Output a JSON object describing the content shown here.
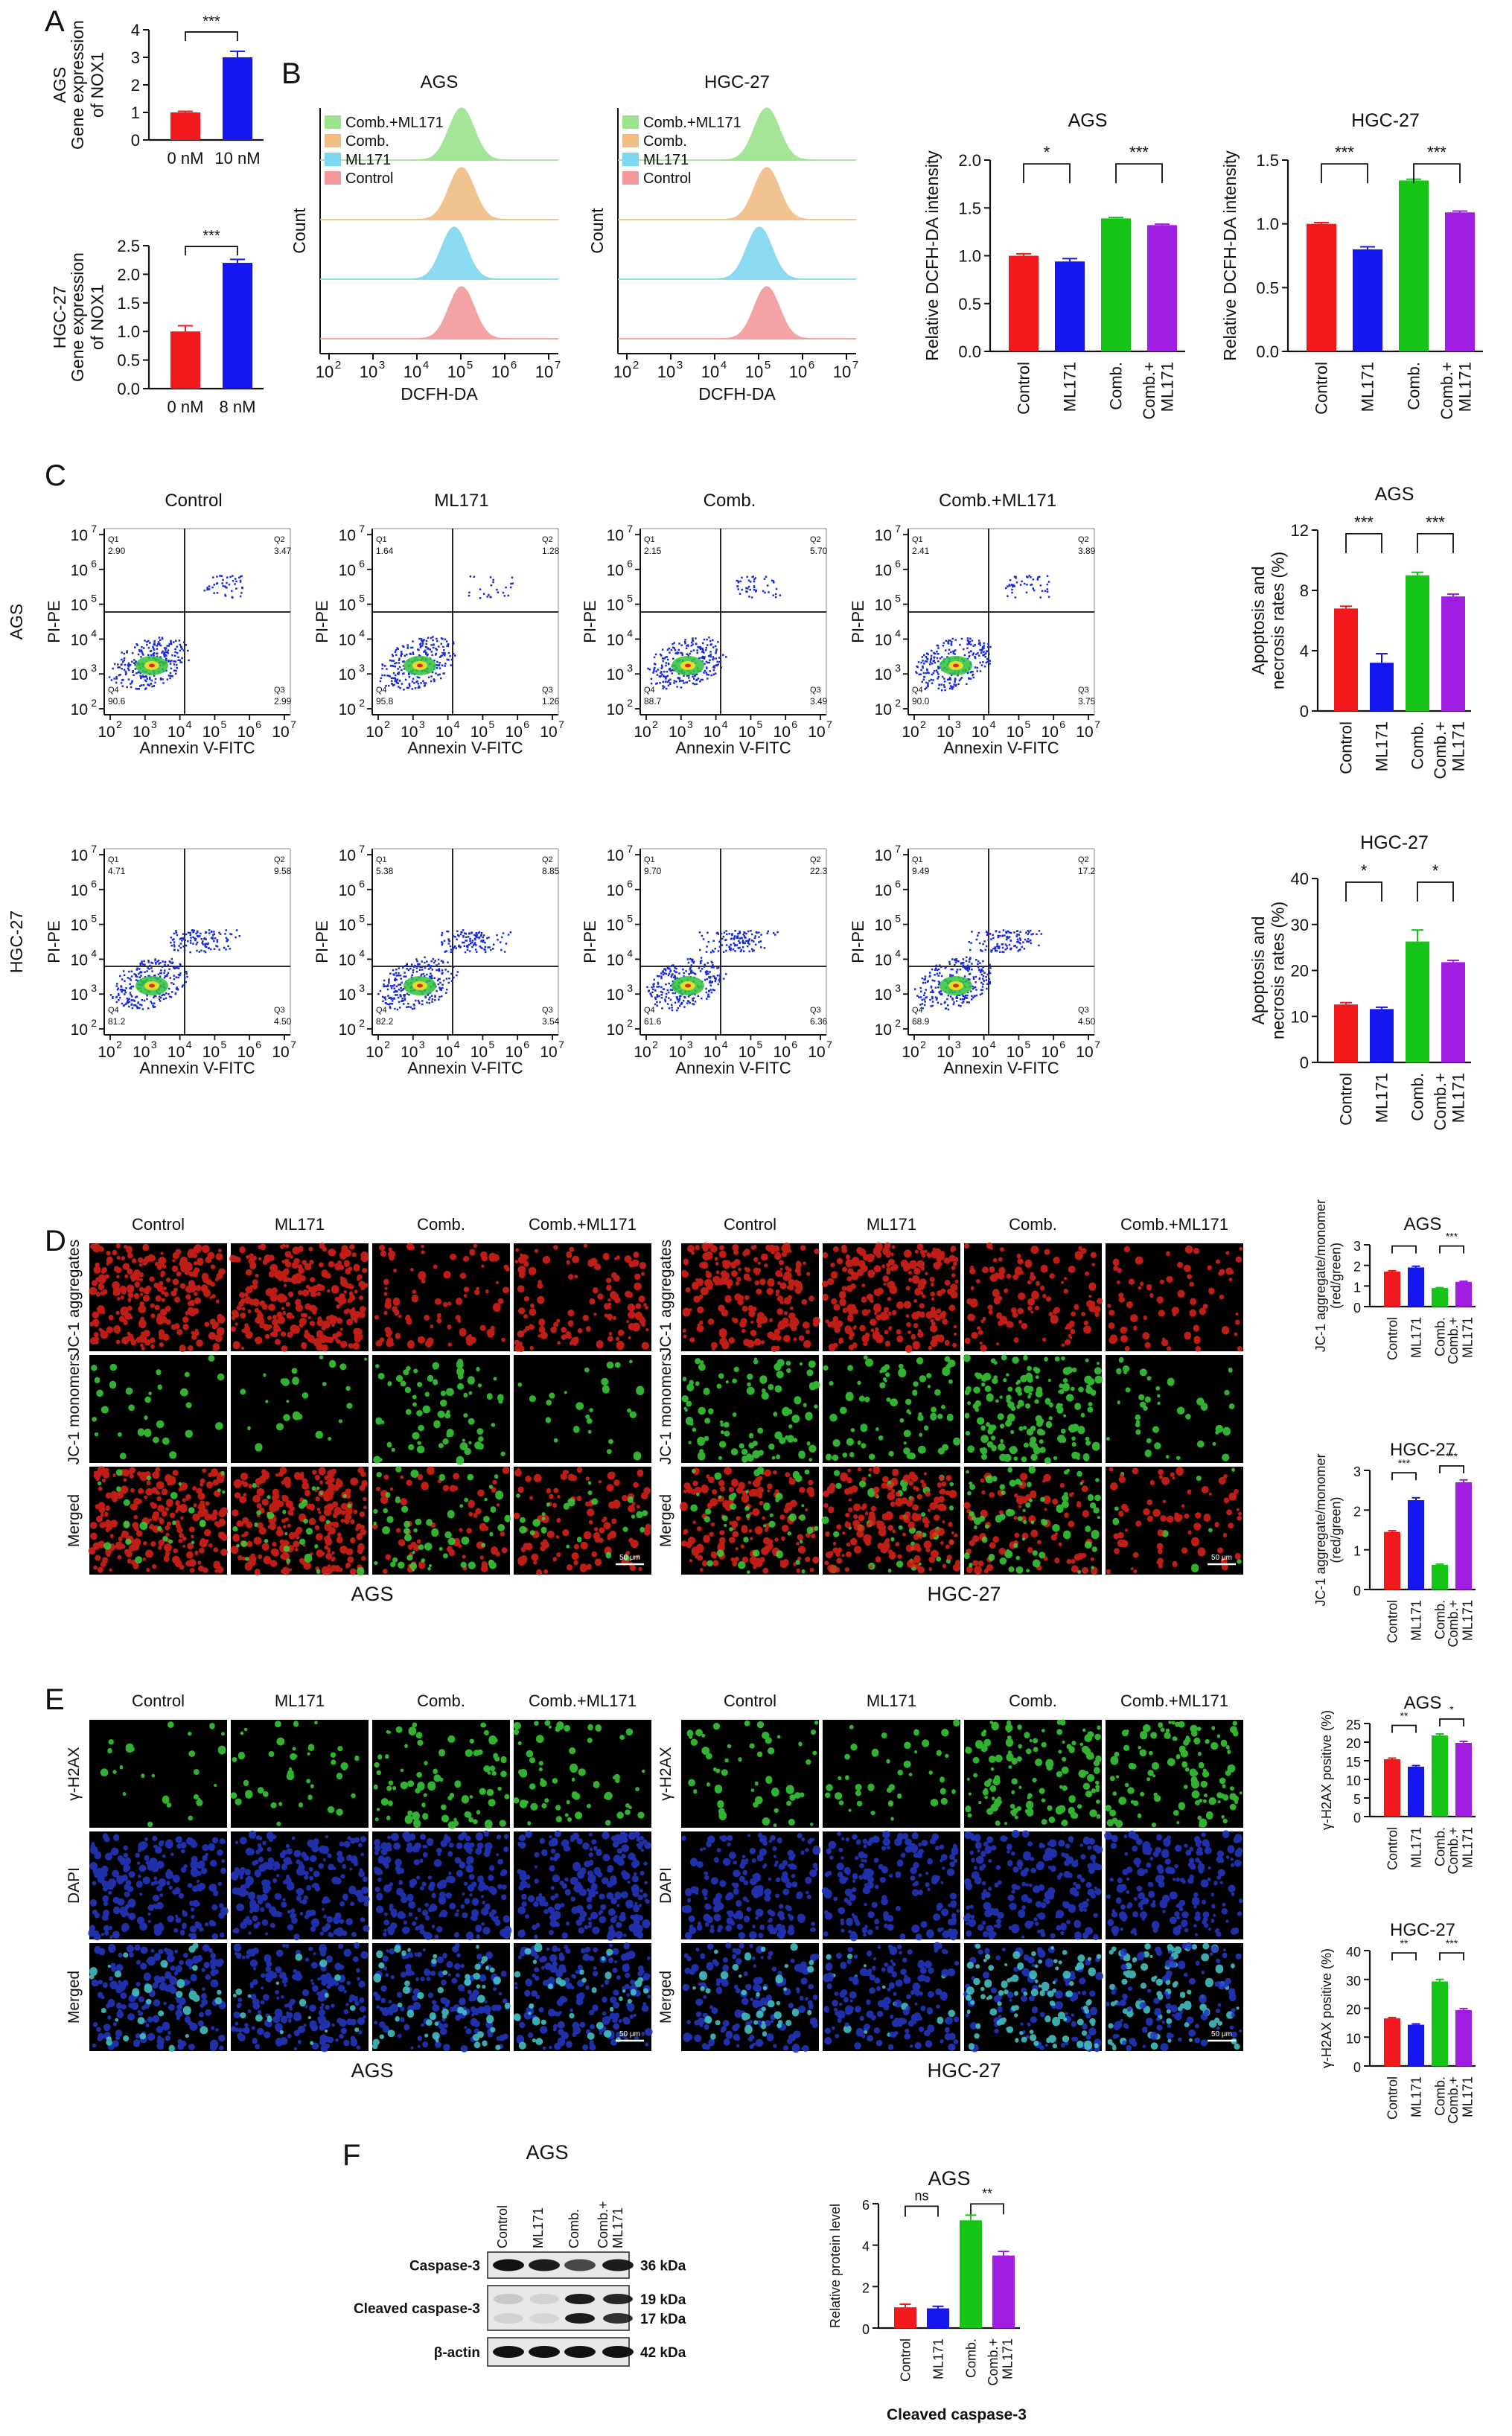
{
  "colors": {
    "red": "#f2191c",
    "blue": "#1616f0",
    "green": "#16c417",
    "purple": "#a11de0",
    "hist_green": "#9be38d",
    "hist_orange": "#f0bd84",
    "hist_cyan": "#7fd6ef",
    "hist_red": "#f29a9a",
    "flow_blue": "#1a2bd6",
    "micro_red": "#e2221a",
    "micro_green": "#3ad13a",
    "micro_blue": "#2438c8"
  },
  "panel_letters": [
    "A",
    "B",
    "C",
    "D",
    "E",
    "F"
  ],
  "panelA": {
    "charts": [
      {
        "type": "bar",
        "cell": "AGS",
        "ylabel": [
          "Gene expression",
          "of NOX1"
        ],
        "categories": [
          "0 nM",
          "10 nM"
        ],
        "values": [
          1.0,
          3.0
        ],
        "errors": [
          0.04,
          0.22
        ],
        "ylim": [
          0,
          4
        ],
        "ticks": [
          "0",
          "1",
          "2",
          "3",
          "4"
        ],
        "sig": "***",
        "bar_colors": [
          "red",
          "blue"
        ]
      },
      {
        "type": "bar",
        "cell": "HGC-27",
        "ylabel": [
          "Gene expression",
          "of NOX1"
        ],
        "categories": [
          "0 nM",
          "8 nM"
        ],
        "values": [
          1.0,
          2.2
        ],
        "errors": [
          0.1,
          0.06
        ],
        "ylim": [
          0,
          2.5
        ],
        "ticks": [
          "0.0",
          "0.5",
          "1.0",
          "1.5",
          "2.0",
          "2.5"
        ],
        "sig": "***",
        "bar_colors": [
          "red",
          "blue"
        ]
      }
    ]
  },
  "panelB": {
    "histograms": [
      {
        "title": "AGS",
        "ylabel": "Count",
        "xlabel": "DCFH-DA",
        "legend": [
          "Comb.+ML171",
          "Comb.",
          "ML171",
          "Control"
        ],
        "xticks": [
          "10",
          "10",
          "10",
          "10",
          "10",
          "10"
        ],
        "xexp": [
          "2",
          "3",
          "4",
          "5",
          "6",
          "7"
        ]
      },
      {
        "title": "HGC-27",
        "ylabel": "Count",
        "xlabel": "DCFH-DA",
        "legend": [
          "Comb.+ML171",
          "Comb.",
          "ML171",
          "Control"
        ],
        "xticks": [
          "10",
          "10",
          "10",
          "10",
          "10",
          "10"
        ],
        "xexp": [
          "2",
          "3",
          "4",
          "5",
          "6",
          "7"
        ]
      }
    ],
    "charts": [
      {
        "type": "bar",
        "title": "AGS",
        "ylabel": "Relative DCFH-DA intensity",
        "categories": [
          "Control",
          "ML171",
          "Comb.",
          "Comb.+ ML171"
        ],
        "values": [
          1.0,
          0.94,
          1.39,
          1.32
        ],
        "errors": [
          0.02,
          0.03,
          0.01,
          0.01
        ],
        "ylim": [
          0,
          2.0
        ],
        "ticks": [
          "0.0",
          "0.5",
          "1.0",
          "1.5",
          "2.0"
        ],
        "sig": [
          "*",
          "***"
        ]
      },
      {
        "type": "bar",
        "title": "HGC-27",
        "ylabel": "Relative DCFH-DA intensity",
        "categories": [
          "Control",
          "ML171",
          "Comb.",
          "Comb.+ ML171"
        ],
        "values": [
          1.0,
          0.8,
          1.34,
          1.09
        ],
        "errors": [
          0.01,
          0.02,
          0.01,
          0.01
        ],
        "ylim": [
          0,
          1.5
        ],
        "ticks": [
          "0.0",
          "0.5",
          "1.0",
          "1.5"
        ],
        "sig": [
          "***",
          "***"
        ]
      }
    ]
  },
  "panelC": {
    "titles": [
      "Control",
      "ML171",
      "Comb.",
      "Comb.+ML171"
    ],
    "row_labels": [
      "AGS",
      "HGC-27"
    ],
    "ylabel": "PI-PE",
    "xlabel": "Annexin V-FITC",
    "quadrant_names": [
      "Q1",
      "Q2",
      "Q3",
      "Q4"
    ],
    "quadrants": [
      [
        [
          "2.90",
          "3.47",
          "2.99",
          "90.6"
        ],
        [
          "1.64",
          "1.28",
          "1.26",
          "95.8"
        ],
        [
          "2.15",
          "5.70",
          "3.49",
          "88.7"
        ],
        [
          "2.41",
          "3.89",
          "3.75",
          "90.0"
        ]
      ],
      [
        [
          "4.71",
          "9.58",
          "4.50",
          "81.2"
        ],
        [
          "5.38",
          "8.85",
          "3.54",
          "82.2"
        ],
        [
          "9.70",
          "22.3",
          "6.36",
          "61.6"
        ],
        [
          "9.49",
          "17.2",
          "4.50",
          "68.9"
        ]
      ]
    ],
    "charts": [
      {
        "type": "bar",
        "title": "AGS",
        "ylabel": [
          "Apoptosis and",
          "necrosis rates (%)"
        ],
        "categories": [
          "Control",
          "ML171",
          "Comb.",
          "Comb.+ ML171"
        ],
        "values": [
          6.8,
          3.2,
          9.0,
          7.6
        ],
        "errors": [
          0.15,
          0.6,
          0.2,
          0.15
        ],
        "ylim": [
          0,
          12
        ],
        "ticks": [
          "0",
          "4",
          "8",
          "12"
        ],
        "sig": [
          "***",
          "***"
        ]
      },
      {
        "type": "bar",
        "title": "HGC-27",
        "ylabel": [
          "Apoptosis and",
          "necrosis rates (%)"
        ],
        "categories": [
          "Control",
          "ML171",
          "Comb.",
          "Comb.+ ML171"
        ],
        "values": [
          12.6,
          11.6,
          26.3,
          21.8
        ],
        "errors": [
          0.4,
          0.4,
          2.5,
          0.4
        ],
        "ylim": [
          0,
          40
        ],
        "ticks": [
          "0",
          "10",
          "20",
          "30",
          "40"
        ],
        "sig": [
          "*",
          "*"
        ]
      }
    ]
  },
  "panelD": {
    "col_titles": [
      "Control",
      "ML171",
      "Comb.",
      "Comb.+ML171"
    ],
    "row_labels": [
      "JC-1 aggregates",
      "JC-1 monomers",
      "Merged"
    ],
    "group_labels": [
      "AGS",
      "HGC-27"
    ],
    "scale": "50 μm",
    "charts": [
      {
        "type": "bar",
        "title": "AGS",
        "ylabel": [
          "JC-1 aggregate/monomer",
          "(red/green)"
        ],
        "categories": [
          "Control",
          "ML171",
          "Comb.",
          "Comb.+ ML171"
        ],
        "values": [
          1.7,
          1.9,
          0.9,
          1.2
        ],
        "errors": [
          0.04,
          0.06,
          0.02,
          0.03
        ],
        "ylim": [
          0,
          3
        ],
        "ticks": [
          "0",
          "1",
          "2",
          "3"
        ],
        "sig": [
          "",
          "***"
        ]
      },
      {
        "type": "bar",
        "title": "HGC-27",
        "ylabel": [
          "JC-1 aggregate/monomer",
          "(red/green)"
        ],
        "categories": [
          "Control",
          "ML171",
          "Comb.",
          "Comb.+ ML171"
        ],
        "values": [
          1.45,
          2.25,
          0.62,
          2.7
        ],
        "errors": [
          0.03,
          0.06,
          0.02,
          0.06
        ],
        "ylim": [
          0,
          3
        ],
        "ticks": [
          "0",
          "1",
          "2",
          "3"
        ],
        "sig": [
          "***",
          "***"
        ]
      }
    ]
  },
  "panelE": {
    "col_titles": [
      "Control",
      "ML171",
      "Comb.",
      "Comb.+ML171"
    ],
    "row_labels": [
      "γ-H2AX",
      "DAPI",
      "Merged"
    ],
    "group_labels": [
      "AGS",
      "HGC-27"
    ],
    "scale": "50 μm",
    "charts": [
      {
        "type": "bar",
        "title": "AGS",
        "ylabel": [
          "γ-H2AX positive (%)"
        ],
        "categories": [
          "Control",
          "ML171",
          "Comb.",
          "Comb.+ ML171"
        ],
        "values": [
          15.4,
          13.4,
          21.8,
          19.8
        ],
        "errors": [
          0.3,
          0.3,
          0.4,
          0.4
        ],
        "ylim": [
          0,
          25
        ],
        "ticks": [
          "0",
          "5",
          "10",
          "15",
          "20",
          "25"
        ],
        "sig": [
          "**",
          "*"
        ]
      },
      {
        "type": "bar",
        "title": "HGC-27",
        "ylabel": [
          "γ-H2AX positive (%)"
        ],
        "categories": [
          "Control",
          "ML171",
          "Comb.",
          "Comb.+ ML171"
        ],
        "values": [
          16.5,
          14.3,
          29.3,
          19.4
        ],
        "errors": [
          0.3,
          0.3,
          0.7,
          0.5
        ],
        "ylim": [
          0,
          40
        ],
        "ticks": [
          "0",
          "10",
          "20",
          "30",
          "40"
        ],
        "sig": [
          "**",
          "***"
        ]
      }
    ]
  },
  "panelF": {
    "blot_title": "AGS",
    "lanes": [
      "Control",
      "ML171",
      "Comb.",
      "Comb.+ ML171"
    ],
    "bands": [
      {
        "label": "Caspase-3",
        "kda": [
          "36 kDa"
        ]
      },
      {
        "label": "Cleaved caspase-3",
        "kda": [
          "19 kDa",
          "17 kDa"
        ]
      },
      {
        "label": "β-actin",
        "kda": [
          "42 kDa"
        ]
      }
    ],
    "chart": {
      "type": "bar",
      "title": "AGS",
      "ylabel": [
        "Relative protein level"
      ],
      "xlabel": "Cleaved caspase-3",
      "categories": [
        "Control",
        "ML171",
        "Comb.",
        "Comb.+ ML171"
      ],
      "values": [
        1.0,
        0.95,
        5.2,
        3.5
      ],
      "errors": [
        0.15,
        0.1,
        0.25,
        0.2
      ],
      "ylim": [
        0,
        6
      ],
      "ticks": [
        "0",
        "2",
        "4",
        "6"
      ],
      "sig": [
        "ns",
        "**"
      ]
    }
  }
}
